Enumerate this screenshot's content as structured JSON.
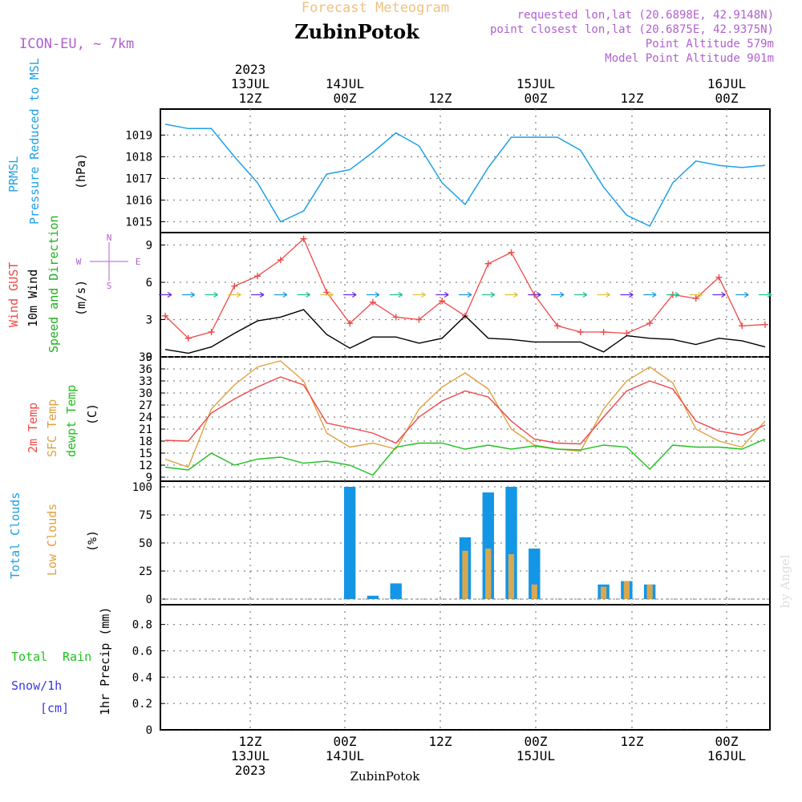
{
  "header": {
    "title_top": "Forecast Meteogram",
    "location": "ZubinPotok",
    "model": "ICON-EU, ~ 7km",
    "requested": "requested lon,lat (20.6898E, 42.9148N)",
    "closest": "point closest lon,lat (20.6875E, 42.9375N)",
    "point_alt": "Point Altitude 579m",
    "model_alt": "Model Point Altitude 901m",
    "footer_location": "ZubinPotok",
    "watermark": "by Angel"
  },
  "colors": {
    "pressure": "#1ea0e8",
    "gust": "#f04848",
    "wind": "#000000",
    "dir_label": "#20b020",
    "t2m": "#f04848",
    "sfc": "#e0a040",
    "dewpt": "#20c020",
    "total_clouds": "#1496e6",
    "low_clouds": "#d8a850",
    "header_purple": "#b060d0",
    "header_orange": "#f0c080",
    "rain": "#20c020",
    "snow": "#3a3ae0"
  },
  "axis": {
    "top": [
      {
        "line1": "2023",
        "line2": "13JUL",
        "line3": "12Z"
      },
      {
        "line1": "",
        "line2": "14JUL",
        "line3": "00Z"
      },
      {
        "line1": "",
        "line2": "",
        "line3": "12Z"
      },
      {
        "line1": "",
        "line2": "15JUL",
        "line3": "00Z"
      },
      {
        "line1": "",
        "line2": "",
        "line3": "12Z"
      },
      {
        "line1": "",
        "line2": "16JUL",
        "line3": "00Z"
      }
    ],
    "bottom": [
      {
        "line1": "12Z",
        "line2": "13JUL",
        "line3": "2023"
      },
      {
        "line1": "00Z",
        "line2": "14JUL",
        "line3": ""
      },
      {
        "line1": "12Z",
        "line2": "",
        "line3": ""
      },
      {
        "line1": "00Z",
        "line2": "15JUL",
        "line3": ""
      },
      {
        "line1": "12Z",
        "line2": "",
        "line3": ""
      },
      {
        "line1": "00Z",
        "line2": "16JUL",
        "line3": ""
      }
    ]
  },
  "panels": {
    "pressure": {
      "label_a": "PRMSL",
      "label_b": "Pressure Reduced to MSL",
      "unit": "(hPa)",
      "ticks": [
        "1019",
        "1018",
        "1017",
        "1016",
        "1015"
      ]
    },
    "wind": {
      "label_a": "Wind GUST",
      "label_b": "10m Wind",
      "label_c": "Speed and Direction",
      "unit": "(m/s)",
      "ticks": [
        "9",
        "6",
        "3",
        "0"
      ],
      "compass_n": "N",
      "compass_w": "W",
      "compass_e": "E",
      "compass_s": "S"
    },
    "temp": {
      "label_a": "2m Temp",
      "label_b": "SFC Temp",
      "label_c": "dewpt Temp",
      "unit": "(C)",
      "ticks": [
        "39",
        "36",
        "33",
        "30",
        "27",
        "24",
        "21",
        "18",
        "15",
        "12",
        "9"
      ]
    },
    "clouds": {
      "label_a": "Total Clouds",
      "label_b": "Low Clouds",
      "unit": "(%)",
      "ticks": [
        "100",
        "75",
        "50",
        "25",
        "0"
      ]
    },
    "precip": {
      "label_a": "Total",
      "label_b": "Rain",
      "label_c": "Snow/1h",
      "label_d": "[cm]",
      "unit": "1hr Precip (mm)",
      "ticks": [
        "0.8",
        "0.6",
        "0.4",
        "0.2",
        "0"
      ]
    }
  },
  "chart_data": {
    "type": "line",
    "x": [
      "13JUL 00Z",
      "13JUL 03Z",
      "13JUL 06Z",
      "13JUL 09Z",
      "13JUL 12Z",
      "13JUL 15Z",
      "13JUL 18Z",
      "13JUL 21Z",
      "14JUL 00Z",
      "14JUL 03Z",
      "14JUL 06Z",
      "14JUL 09Z",
      "14JUL 12Z",
      "14JUL 15Z",
      "14JUL 18Z",
      "14JUL 21Z",
      "15JUL 00Z",
      "15JUL 03Z",
      "15JUL 06Z",
      "15JUL 09Z",
      "15JUL 12Z",
      "15JUL 15Z",
      "15JUL 18Z",
      "15JUL 21Z",
      "16JUL 00Z",
      "16JUL 03Z",
      "16JUL 06Z"
    ],
    "series": [
      {
        "name": "PRMSL",
        "unit": "hPa",
        "values": [
          1019.5,
          1019.3,
          1019.3,
          1018.0,
          1016.8,
          1015.0,
          1015.5,
          1017.2,
          1017.4,
          1018.2,
          1019.1,
          1018.5,
          1016.8,
          1015.8,
          1017.5,
          1018.9,
          1018.9,
          1018.9,
          1018.3,
          1016.6,
          1015.3,
          1014.8,
          1016.8,
          1017.8,
          1017.6,
          1017.5,
          1017.6
        ]
      },
      {
        "name": "Wind GUST",
        "unit": "m/s",
        "values": [
          3.3,
          1.5,
          2.0,
          5.7,
          6.5,
          7.8,
          9.5,
          5.2,
          2.7,
          4.4,
          3.2,
          3.0,
          4.5,
          3.3,
          7.5,
          8.4,
          5.0,
          2.5,
          2.0,
          2.0,
          1.9,
          2.7,
          5.0,
          4.7,
          6.4,
          2.5,
          2.6
        ]
      },
      {
        "name": "10m Wind",
        "unit": "m/s",
        "values": [
          0.6,
          0.3,
          0.8,
          1.9,
          2.9,
          3.2,
          3.8,
          1.8,
          0.7,
          1.6,
          1.6,
          1.1,
          1.5,
          3.3,
          1.5,
          1.4,
          1.2,
          1.2,
          1.2,
          0.4,
          1.7,
          1.5,
          1.4,
          1.0,
          1.5,
          1.3,
          0.8
        ]
      },
      {
        "name": "2m Temp",
        "unit": "C",
        "values": [
          18.2,
          18.0,
          25.0,
          28.5,
          31.5,
          34.0,
          32.0,
          22.5,
          21.3,
          20.0,
          17.5,
          24.0,
          28.0,
          30.5,
          29.0,
          23.0,
          18.5,
          17.5,
          17.3,
          24.0,
          30.5,
          33.0,
          31.0,
          23.0,
          20.5,
          19.5,
          22.0
        ]
      },
      {
        "name": "SFC Temp",
        "unit": "C",
        "values": [
          13.5,
          11.5,
          26.0,
          32.0,
          36.5,
          38.0,
          33.0,
          20.0,
          16.5,
          17.5,
          16.0,
          26.0,
          31.5,
          35.0,
          31.0,
          21.0,
          17.0,
          16.0,
          15.5,
          26.0,
          33.0,
          36.5,
          32.5,
          21.0,
          18.0,
          16.5,
          23.0
        ]
      },
      {
        "name": "dewpt Temp",
        "unit": "C",
        "values": [
          11.5,
          10.8,
          15.0,
          12.0,
          13.5,
          14.0,
          12.5,
          13.0,
          12.0,
          9.5,
          16.5,
          17.5,
          17.5,
          16.0,
          17.0,
          16.0,
          16.8,
          16.0,
          15.8,
          17.0,
          16.5,
          11.0,
          17.0,
          16.5,
          16.5,
          16.0,
          18.5
        ]
      },
      {
        "name": "Total Clouds",
        "unit": "%",
        "values": [
          0,
          0,
          0,
          0,
          0,
          0,
          0,
          0,
          100,
          3,
          14,
          0,
          0,
          55,
          95,
          100,
          45,
          0,
          0,
          13,
          16,
          13,
          0,
          0,
          0,
          0,
          0
        ]
      },
      {
        "name": "Low Clouds",
        "unit": "%",
        "values": [
          0,
          0,
          0,
          0,
          0,
          0,
          0,
          0,
          0,
          0,
          0,
          0,
          0,
          43,
          45,
          40,
          13,
          0,
          0,
          11,
          16,
          13,
          0,
          0,
          0,
          0,
          0
        ]
      },
      {
        "name": "1hr Precip",
        "unit": "mm",
        "values": [
          0,
          0,
          0,
          0,
          0,
          0,
          0,
          0,
          0,
          0,
          0,
          0,
          0,
          0,
          0,
          0,
          0,
          0,
          0,
          0,
          0,
          0,
          0,
          0,
          0,
          0,
          0
        ]
      }
    ],
    "ylim": {
      "pressure": [
        1014.5,
        1020.2
      ],
      "wind": [
        0,
        10
      ],
      "temp": [
        8,
        39
      ],
      "clouds": [
        -5,
        105
      ],
      "precip": [
        0,
        0.95
      ]
    },
    "grid": true
  }
}
